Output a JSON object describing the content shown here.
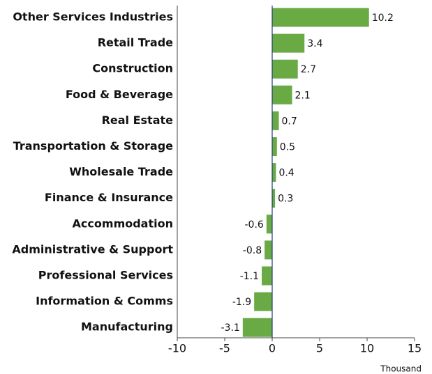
{
  "chart_data": {
    "type": "hbar",
    "categories": [
      "Other Services Industries",
      "Retail Trade",
      "Construction",
      "Food & Beverage",
      "Real Estate",
      "Transportation & Storage",
      "Wholesale Trade",
      "Finance & Insurance",
      "Accommodation",
      "Administrative & Support",
      "Professional Services",
      "Information & Comms",
      "Manufacturing"
    ],
    "values": [
      10.2,
      3.4,
      2.7,
      2.1,
      0.7,
      0.5,
      0.4,
      0.3,
      -0.6,
      -0.8,
      -1.1,
      -1.9,
      -3.1
    ],
    "color": "#6aaa45",
    "xlim": [
      -10,
      15
    ],
    "xticks": [
      -10,
      -5,
      0,
      5,
      10,
      15
    ],
    "x_label": "Thousand"
  }
}
